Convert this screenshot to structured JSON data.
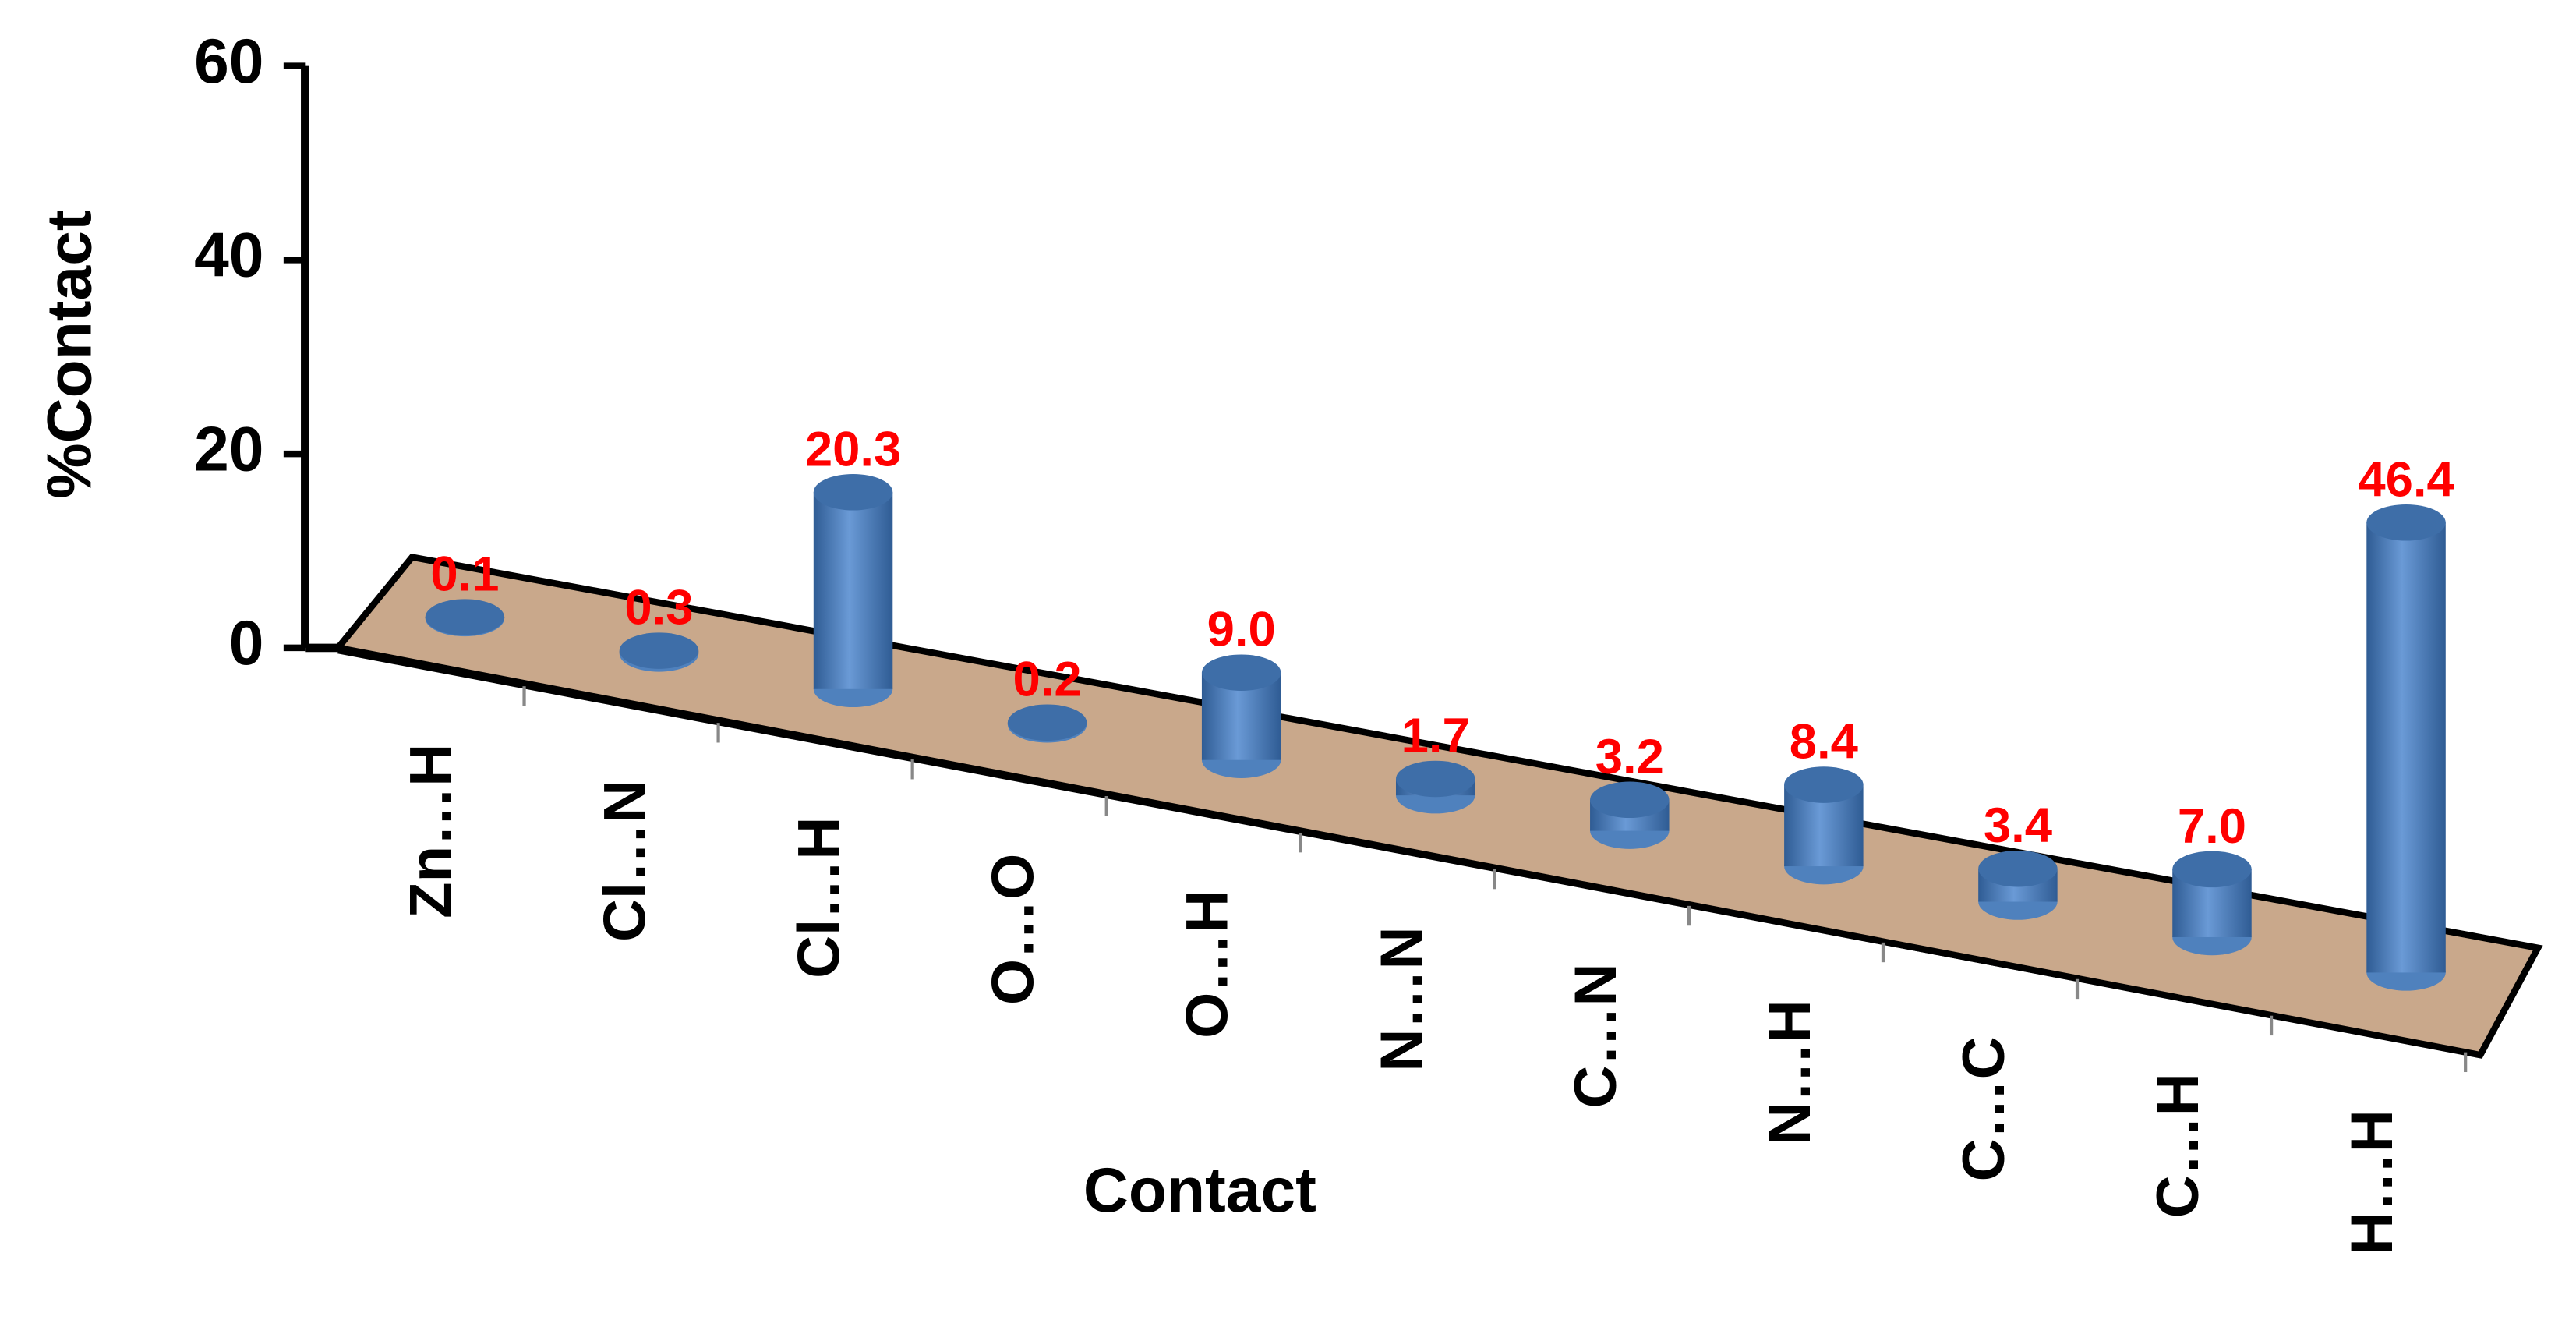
{
  "chart_data": {
    "type": "bar3d",
    "x_label": "Contact",
    "y_label": "%Contact",
    "categories": [
      "Zn…H",
      "Cl…N",
      "Cl…H",
      "O…O",
      "O…H",
      "N…N",
      "C…N",
      "N…H",
      "C…C",
      "C…H",
      "H…H"
    ],
    "values": [
      0.1,
      0.3,
      20.3,
      0.2,
      9.0,
      1.7,
      3.2,
      8.4,
      3.4,
      7.0,
      46.4
    ],
    "value_labels": [
      "0.1",
      "0.3",
      "20.3",
      "0.2",
      "9.0",
      "1.7",
      "3.2",
      "8.4",
      "3.4",
      "7.0",
      "46.4"
    ],
    "color": "#4f81bd",
    "label_color": "#ff0000",
    "floor_color": "#c9a88b",
    "ylim": [
      0,
      60
    ],
    "yticks": [
      0,
      20,
      40,
      60
    ]
  }
}
